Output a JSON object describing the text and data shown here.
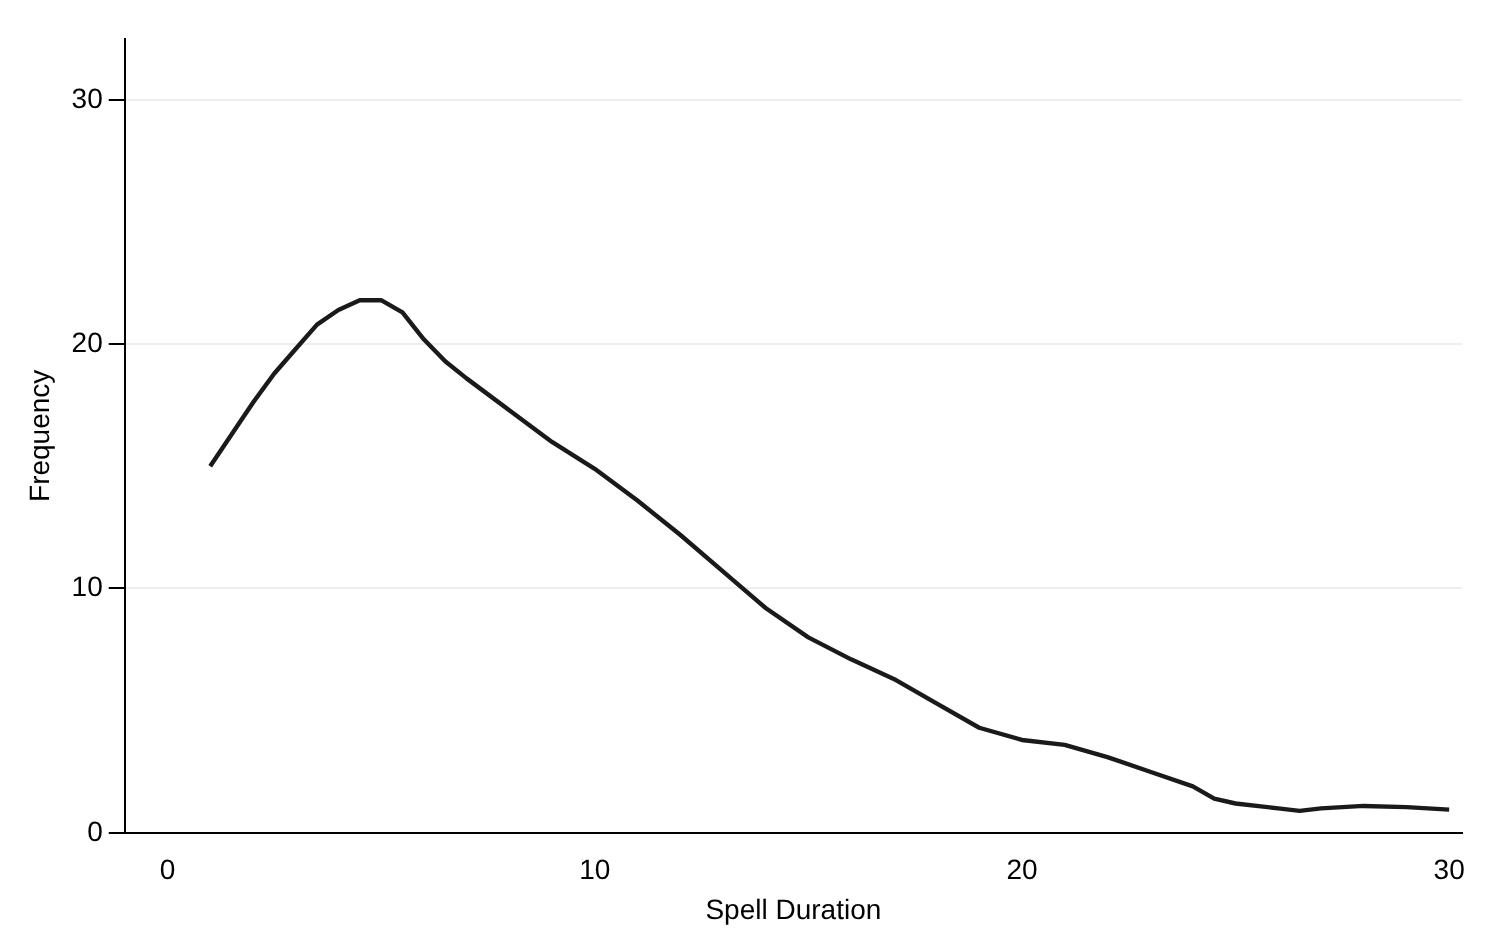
{
  "chart_data": {
    "type": "line",
    "xlabel": "Spell Duration",
    "ylabel": "Frequency",
    "x": [
      1,
      1.5,
      2,
      2.5,
      3,
      3.5,
      4,
      4.5,
      5,
      5.5,
      6,
      6.5,
      7,
      8,
      9,
      10,
      11,
      12,
      13,
      14,
      15,
      16,
      17,
      18,
      19,
      20,
      21,
      22,
      23,
      24,
      24.5,
      25,
      26,
      26.5,
      27,
      28,
      29,
      30
    ],
    "series": [
      {
        "color": "#1a1a1a",
        "values": [
          15,
          16.3,
          17.6,
          18.8,
          19.8,
          20.8,
          21.4,
          21.8,
          21.8,
          21.3,
          20.2,
          19.3,
          18.6,
          17.3,
          16,
          14.9,
          13.6,
          12.2,
          10.7,
          9.2,
          8,
          7.1,
          6.3,
          5.3,
          4.3,
          3.8,
          3.6,
          3.1,
          2.5,
          1.9,
          1.4,
          1.2,
          1,
          0.9,
          1,
          1.1,
          1.05,
          0.95
        ]
      }
    ],
    "xlim": [
      -1,
      30.3
    ],
    "ylim": [
      0,
      32.5
    ],
    "xticks": [
      0,
      10,
      20,
      30
    ],
    "yticks": [
      0,
      10,
      20,
      30
    ],
    "grid": "y",
    "legend": false,
    "marker": "none",
    "line_style": "solid"
  }
}
